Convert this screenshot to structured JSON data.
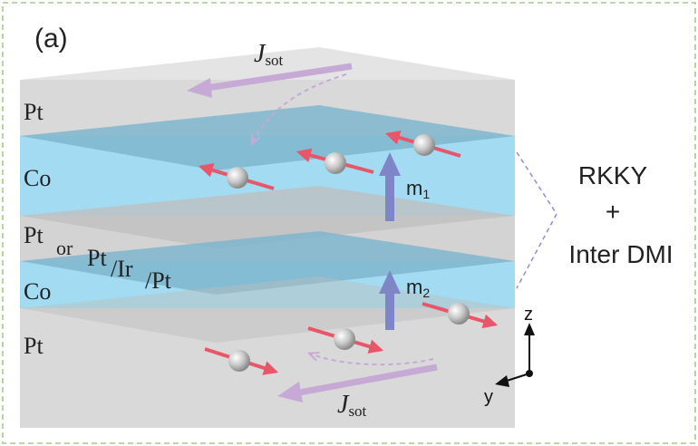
{
  "panel_label": "(a)",
  "layers": {
    "pt_top": "Pt",
    "co_top": "Co",
    "pt_mid": "Pt",
    "or_word": "or",
    "pt_ir_pt_1": "Pt",
    "pt_ir_pt_2": "/Ir",
    "pt_ir_pt_3": "/Pt",
    "co_bottom": "Co",
    "pt_bottom": "Pt"
  },
  "currents": {
    "top": {
      "symbol": "J",
      "subscript": "sot"
    },
    "bottom": {
      "symbol": "J",
      "subscript": "sot"
    }
  },
  "magnetizations": {
    "m1": {
      "symbol": "m",
      "subscript": "1"
    },
    "m2": {
      "symbol": "m",
      "subscript": "2"
    }
  },
  "coupling": {
    "line1": "RKKY",
    "line2": "+",
    "line3": "Inter DMI"
  },
  "axes": {
    "z": "z",
    "y": "y"
  },
  "colors": {
    "frame_dashed": "#a9c98a",
    "pt_layer": "#d9d9d9",
    "pt_layer_dark": "#c4c4c4",
    "co_layer": "#a3dcf2",
    "co_layer_dark": "#7fb6cf",
    "magnetization_arrow": "#7e86c8",
    "current_arrow": "#c7a9d6",
    "spin_arrow": "#e8566a"
  }
}
